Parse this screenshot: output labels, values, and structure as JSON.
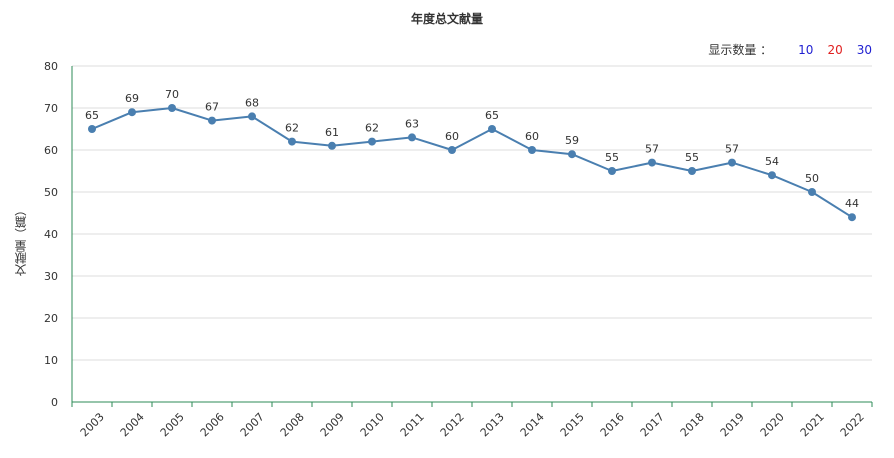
{
  "title": "年度总文献量",
  "count_selector": {
    "label": "显示数量 ：",
    "options": [
      "10",
      "20",
      "30"
    ]
  },
  "colors": {
    "line": "#4a7fb0",
    "axis": "#2e8b57",
    "grid": "#dddddd"
  },
  "chart_data": {
    "type": "line",
    "title": "年度总文献量",
    "xlabel": "",
    "ylabel": "文献量（篇）",
    "ylim": [
      0,
      80
    ],
    "yticks": [
      0,
      10,
      20,
      30,
      40,
      50,
      60,
      70,
      80
    ],
    "grid": true,
    "categories": [
      "2003",
      "2004",
      "2005",
      "2006",
      "2007",
      "2008",
      "2009",
      "2010",
      "2011",
      "2012",
      "2013",
      "2014",
      "2015",
      "2016",
      "2017",
      "2018",
      "2019",
      "2020",
      "2021",
      "2022"
    ],
    "values": [
      65,
      69,
      70,
      67,
      68,
      62,
      61,
      62,
      63,
      60,
      65,
      60,
      59,
      55,
      57,
      55,
      57,
      54,
      50,
      44
    ]
  }
}
